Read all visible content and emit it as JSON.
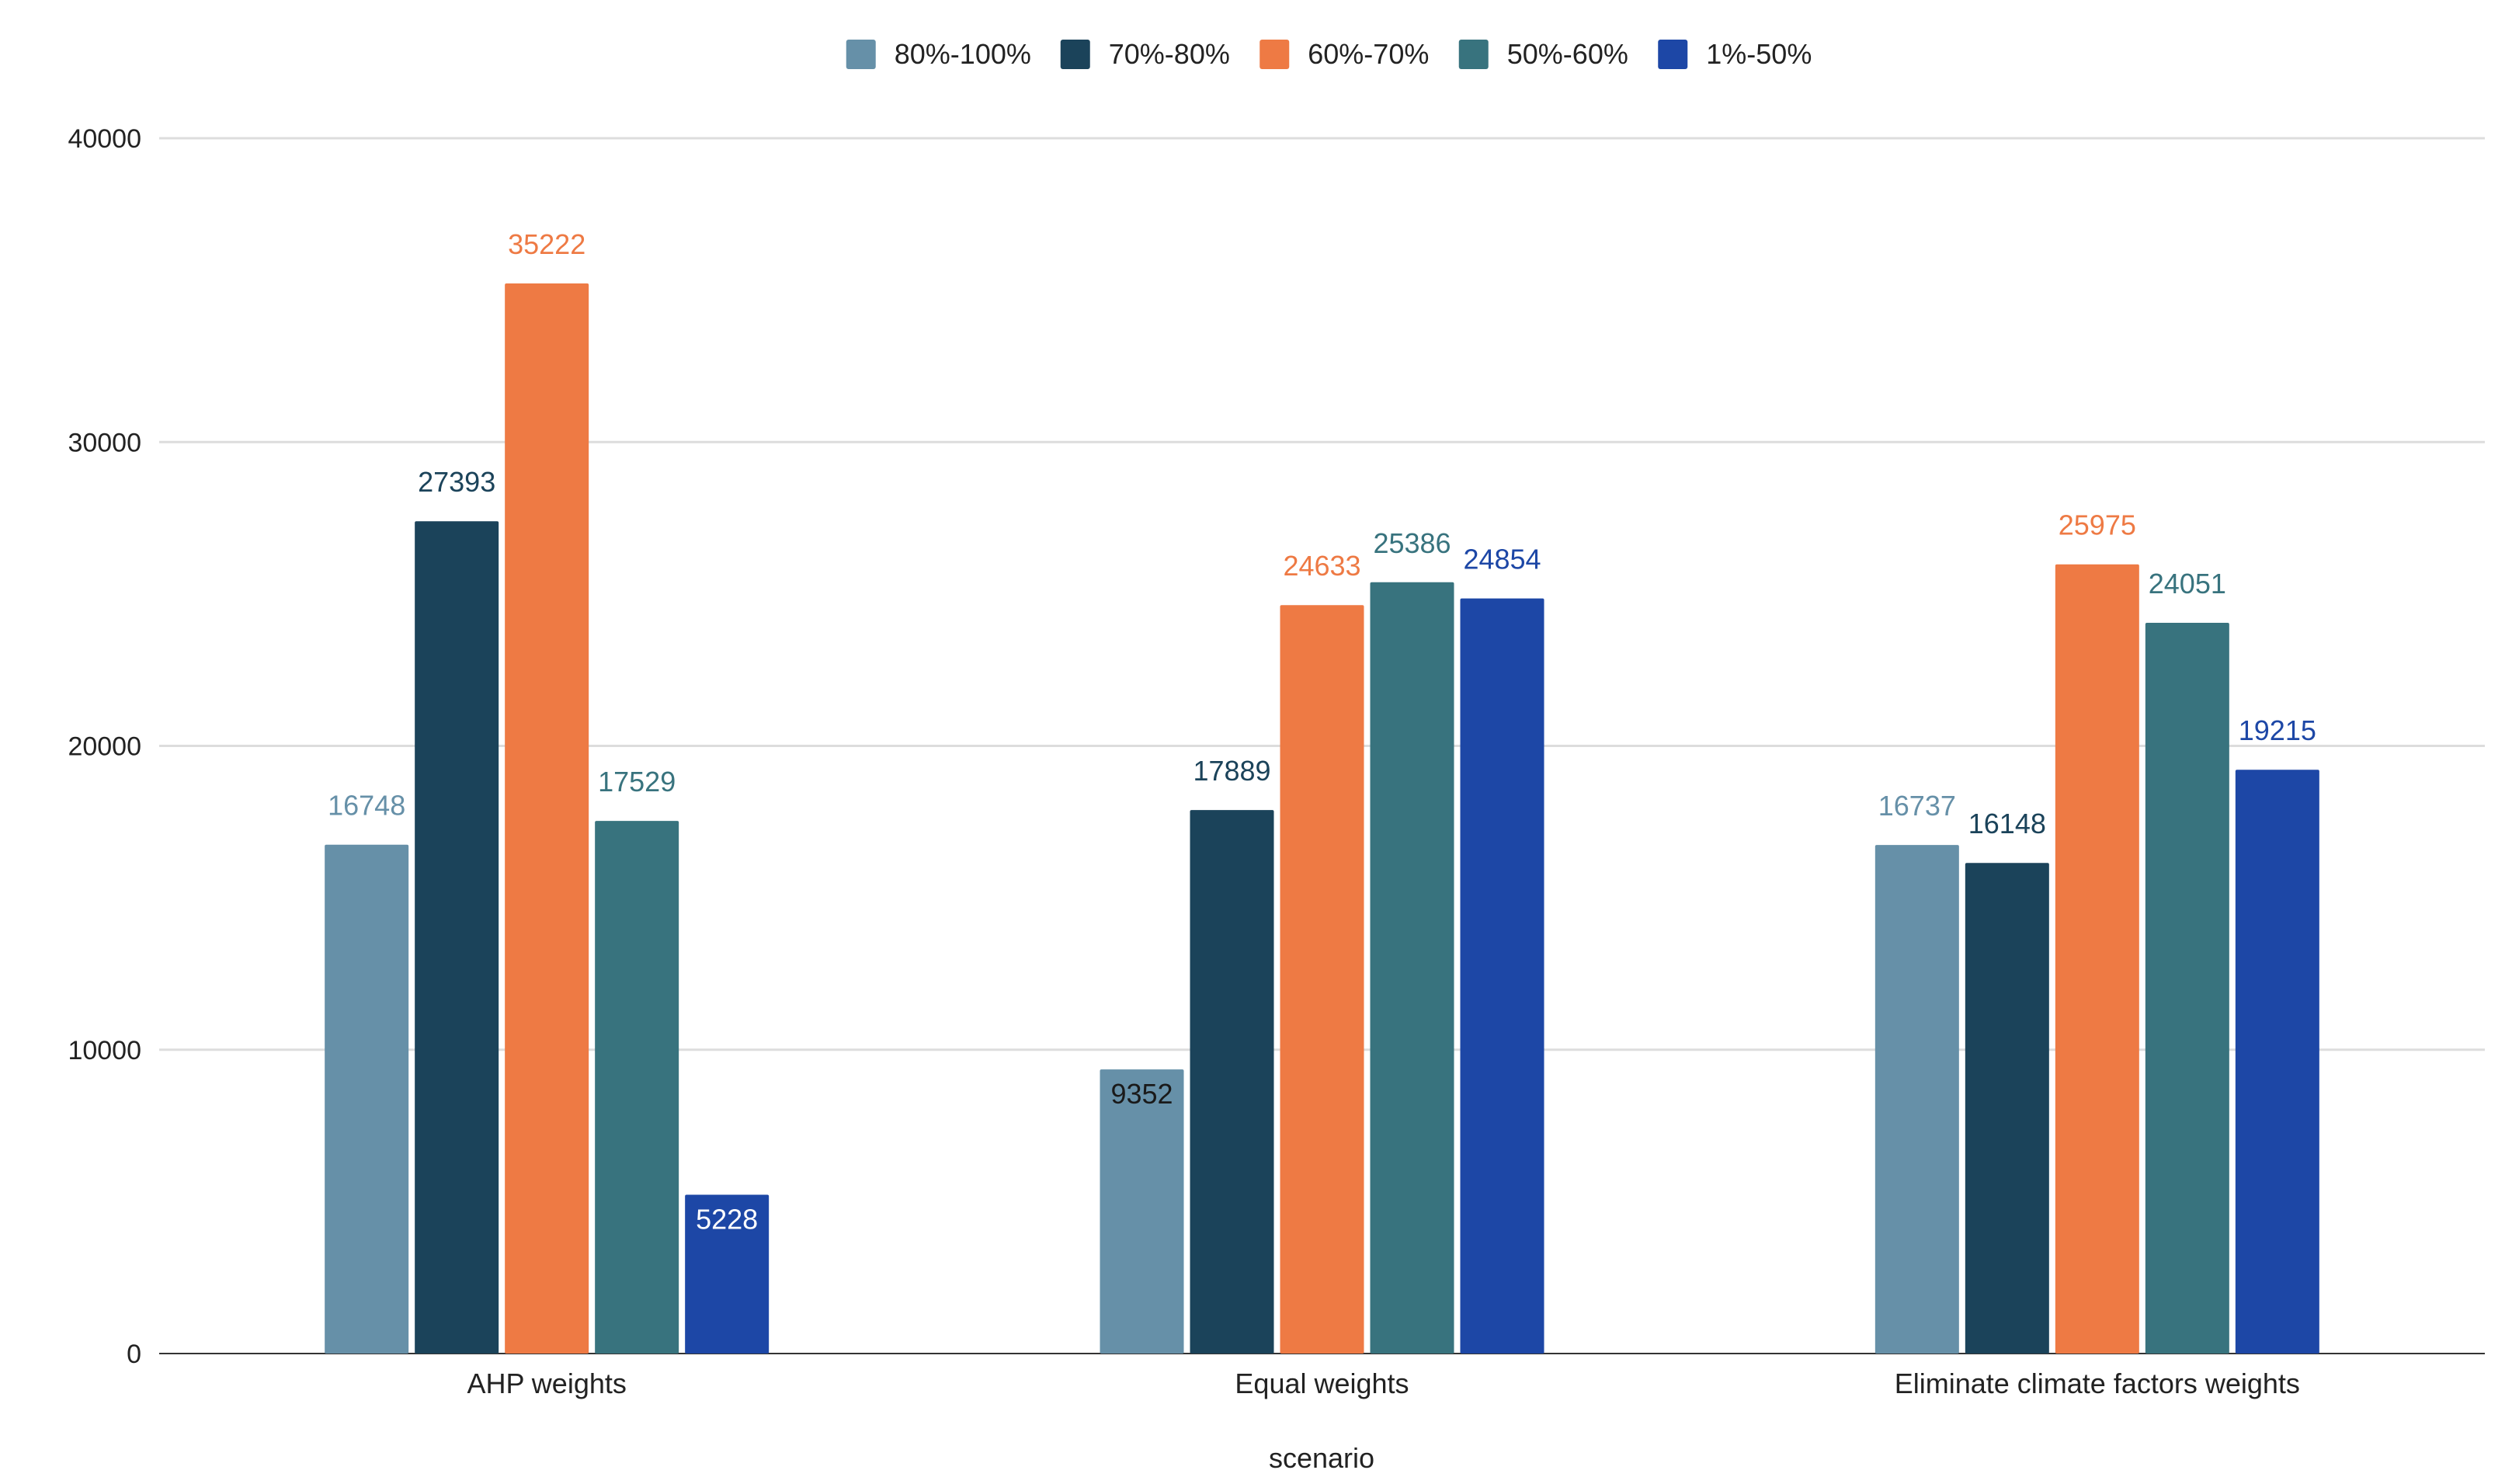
{
  "chart_data": {
    "type": "bar",
    "title": "",
    "xlabel": "scenario",
    "ylabel": "",
    "ylim": [
      0,
      40000
    ],
    "yticks": [
      0,
      10000,
      20000,
      30000,
      40000
    ],
    "grid": true,
    "legend_position": "top",
    "categories": [
      "AHP weights",
      "Equal weights",
      "Eliminate climate factors weights"
    ],
    "series": [
      {
        "name": "80%-100%",
        "color": "#6690a8",
        "label_color": "#6690a8",
        "values": [
          16748,
          9352,
          16737
        ],
        "label_inside": [
          false,
          true,
          false
        ],
        "inside_label_color": "#1a1a1a"
      },
      {
        "name": "70%-80%",
        "color": "#1b435a",
        "label_color": "#1b435a",
        "values": [
          27393,
          17889,
          16148
        ],
        "label_inside": [
          false,
          false,
          false
        ],
        "inside_label_color": "#ffffff"
      },
      {
        "name": "60%-70%",
        "color": "#ee7a44",
        "label_color": "#ee7a44",
        "values": [
          35222,
          24633,
          25975
        ],
        "label_inside": [
          false,
          false,
          false
        ],
        "inside_label_color": "#ffffff"
      },
      {
        "name": "50%-60%",
        "color": "#38737e",
        "label_color": "#38737e",
        "values": [
          17529,
          25386,
          24051
        ],
        "label_inside": [
          false,
          false,
          false
        ],
        "inside_label_color": "#ffffff"
      },
      {
        "name": "1%-50%",
        "color": "#1d47a6",
        "label_color": "#1d47a6",
        "values": [
          5228,
          24854,
          19215
        ],
        "label_inside": [
          true,
          false,
          false
        ],
        "inside_label_color": "#ffffff"
      }
    ]
  }
}
